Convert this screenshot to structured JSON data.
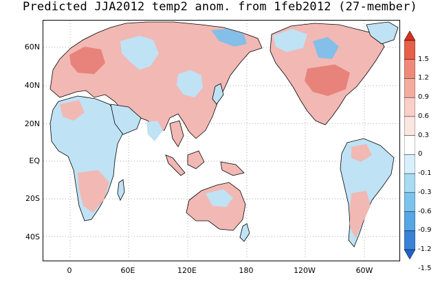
{
  "title": "Predicted JJA2012 temp2 anom. from 1feb2012 (27-member)",
  "lat_labels": [
    "60N",
    "40N",
    "20N",
    "EQ",
    "20S",
    "40S"
  ],
  "lon_labels": [
    "0",
    "60E",
    "120E",
    "180",
    "120W",
    "60W"
  ],
  "colorbar": {
    "labels": [
      "1.5",
      "1.2",
      "0.9",
      "0.6",
      "0.3",
      "0",
      "-0.1",
      "-0.3",
      "-0.6",
      "-0.9",
      "-1.2",
      "-1.5"
    ],
    "colors": [
      "#d7301f",
      "#e8604a",
      "#f08a78",
      "#f5aca0",
      "#f9cfc8",
      "#fbe6e2",
      "#ffffff",
      "#d8f0fb",
      "#a9dcf4",
      "#7cc4ee",
      "#58a6e4",
      "#3a82d6",
      "#1f62c8"
    ]
  },
  "colors": {
    "warm": "#f2b8b4",
    "warm_strong": "#e8837b",
    "cool": "#bfe2f5",
    "cool_strong": "#84bfe9",
    "coast": "#000000",
    "grid": "#888888"
  }
}
